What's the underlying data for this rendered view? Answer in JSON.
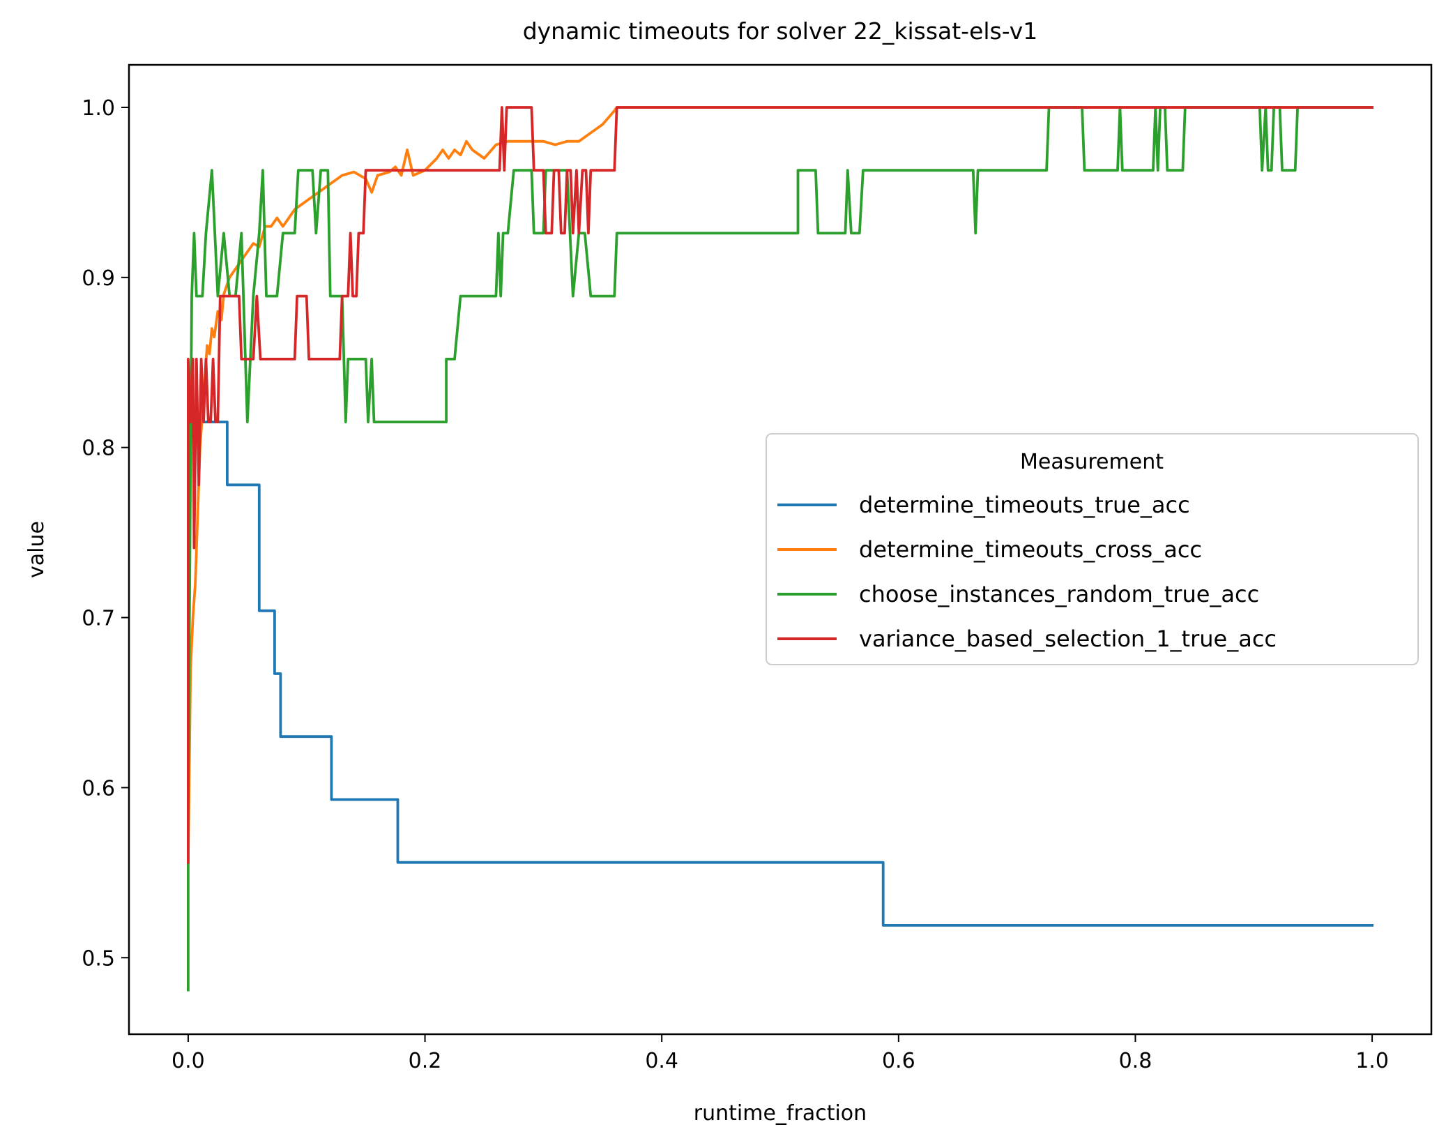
{
  "chart_data": {
    "type": "line",
    "title": "dynamic timeouts for solver 22_kissat-els-v1",
    "xlabel": "runtime_fraction",
    "ylabel": "value",
    "xlim": [
      -0.05,
      1.05
    ],
    "ylim": [
      0.455,
      1.025
    ],
    "xticks": [
      0.0,
      0.2,
      0.4,
      0.6,
      0.8,
      1.0
    ],
    "xtick_labels": [
      "0.0",
      "0.2",
      "0.4",
      "0.6",
      "0.8",
      "1.0"
    ],
    "yticks": [
      0.5,
      0.6,
      0.7,
      0.8,
      0.9,
      1.0
    ],
    "ytick_labels": [
      "0.5",
      "0.6",
      "0.7",
      "0.8",
      "0.9",
      "1.0"
    ],
    "grid": false,
    "legend": {
      "title": "Measurement",
      "position": "center-right"
    },
    "series": [
      {
        "name": "determine_timeouts_true_acc",
        "color": "#1f77b4",
        "style": "step",
        "points": [
          [
            0.0,
            0.556
          ],
          [
            0.0,
            0.815
          ],
          [
            0.033,
            0.815
          ],
          [
            0.033,
            0.778
          ],
          [
            0.06,
            0.778
          ],
          [
            0.06,
            0.704
          ],
          [
            0.073,
            0.704
          ],
          [
            0.073,
            0.667
          ],
          [
            0.078,
            0.667
          ],
          [
            0.078,
            0.63
          ],
          [
            0.121,
            0.63
          ],
          [
            0.121,
            0.593
          ],
          [
            0.177,
            0.593
          ],
          [
            0.177,
            0.556
          ],
          [
            0.587,
            0.556
          ],
          [
            0.587,
            0.519
          ],
          [
            1.0,
            0.519
          ]
        ]
      },
      {
        "name": "determine_timeouts_cross_acc",
        "color": "#ff7f0e",
        "style": "line",
        "points": [
          [
            0.0,
            0.556
          ],
          [
            0.002,
            0.67
          ],
          [
            0.004,
            0.7
          ],
          [
            0.006,
            0.72
          ],
          [
            0.008,
            0.76
          ],
          [
            0.01,
            0.8
          ],
          [
            0.012,
            0.82
          ],
          [
            0.014,
            0.84
          ],
          [
            0.016,
            0.86
          ],
          [
            0.018,
            0.855
          ],
          [
            0.02,
            0.87
          ],
          [
            0.022,
            0.865
          ],
          [
            0.025,
            0.88
          ],
          [
            0.028,
            0.875
          ],
          [
            0.03,
            0.89
          ],
          [
            0.035,
            0.9
          ],
          [
            0.04,
            0.905
          ],
          [
            0.045,
            0.91
          ],
          [
            0.05,
            0.915
          ],
          [
            0.055,
            0.92
          ],
          [
            0.06,
            0.918
          ],
          [
            0.065,
            0.93
          ],
          [
            0.07,
            0.93
          ],
          [
            0.075,
            0.935
          ],
          [
            0.08,
            0.93
          ],
          [
            0.085,
            0.935
          ],
          [
            0.09,
            0.94
          ],
          [
            0.1,
            0.945
          ],
          [
            0.11,
            0.95
          ],
          [
            0.12,
            0.955
          ],
          [
            0.13,
            0.96
          ],
          [
            0.14,
            0.962
          ],
          [
            0.15,
            0.958
          ],
          [
            0.155,
            0.95
          ],
          [
            0.16,
            0.96
          ],
          [
            0.17,
            0.962
          ],
          [
            0.175,
            0.965
          ],
          [
            0.18,
            0.96
          ],
          [
            0.185,
            0.975
          ],
          [
            0.19,
            0.96
          ],
          [
            0.2,
            0.963
          ],
          [
            0.21,
            0.97
          ],
          [
            0.215,
            0.975
          ],
          [
            0.22,
            0.97
          ],
          [
            0.225,
            0.975
          ],
          [
            0.23,
            0.972
          ],
          [
            0.235,
            0.98
          ],
          [
            0.24,
            0.975
          ],
          [
            0.25,
            0.97
          ],
          [
            0.26,
            0.978
          ],
          [
            0.27,
            0.98
          ],
          [
            0.28,
            0.98
          ],
          [
            0.29,
            0.98
          ],
          [
            0.3,
            0.98
          ],
          [
            0.31,
            0.978
          ],
          [
            0.32,
            0.98
          ],
          [
            0.33,
            0.98
          ],
          [
            0.34,
            0.985
          ],
          [
            0.35,
            0.99
          ],
          [
            0.36,
            0.998
          ],
          [
            0.362,
            1.0
          ],
          [
            1.0,
            1.0
          ]
        ]
      },
      {
        "name": "choose_instances_random_true_acc",
        "color": "#2ca02c",
        "style": "line",
        "points": [
          [
            0.0,
            0.481
          ],
          [
            0.0,
            0.593
          ],
          [
            0.003,
            0.889
          ],
          [
            0.005,
            0.926
          ],
          [
            0.007,
            0.889
          ],
          [
            0.012,
            0.889
          ],
          [
            0.015,
            0.926
          ],
          [
            0.02,
            0.963
          ],
          [
            0.025,
            0.889
          ],
          [
            0.03,
            0.926
          ],
          [
            0.035,
            0.889
          ],
          [
            0.04,
            0.889
          ],
          [
            0.045,
            0.926
          ],
          [
            0.05,
            0.815
          ],
          [
            0.055,
            0.889
          ],
          [
            0.06,
            0.926
          ],
          [
            0.063,
            0.963
          ],
          [
            0.066,
            0.889
          ],
          [
            0.075,
            0.889
          ],
          [
            0.08,
            0.926
          ],
          [
            0.09,
            0.926
          ],
          [
            0.093,
            0.963
          ],
          [
            0.105,
            0.963
          ],
          [
            0.108,
            0.926
          ],
          [
            0.112,
            0.963
          ],
          [
            0.118,
            0.963
          ],
          [
            0.12,
            0.889
          ],
          [
            0.13,
            0.889
          ],
          [
            0.133,
            0.815
          ],
          [
            0.135,
            0.852
          ],
          [
            0.15,
            0.852
          ],
          [
            0.152,
            0.815
          ],
          [
            0.155,
            0.852
          ],
          [
            0.157,
            0.815
          ],
          [
            0.218,
            0.815
          ],
          [
            0.218,
            0.852
          ],
          [
            0.225,
            0.852
          ],
          [
            0.23,
            0.889
          ],
          [
            0.26,
            0.889
          ],
          [
            0.262,
            0.926
          ],
          [
            0.264,
            0.889
          ],
          [
            0.266,
            0.926
          ],
          [
            0.27,
            0.926
          ],
          [
            0.275,
            0.963
          ],
          [
            0.29,
            0.963
          ],
          [
            0.292,
            0.926
          ],
          [
            0.3,
            0.926
          ],
          [
            0.302,
            0.963
          ],
          [
            0.32,
            0.963
          ],
          [
            0.325,
            0.889
          ],
          [
            0.33,
            0.926
          ],
          [
            0.335,
            0.926
          ],
          [
            0.34,
            0.889
          ],
          [
            0.36,
            0.889
          ],
          [
            0.362,
            0.926
          ],
          [
            0.515,
            0.926
          ],
          [
            0.515,
            0.963
          ],
          [
            0.53,
            0.963
          ],
          [
            0.532,
            0.926
          ],
          [
            0.555,
            0.926
          ],
          [
            0.557,
            0.963
          ],
          [
            0.56,
            0.926
          ],
          [
            0.567,
            0.926
          ],
          [
            0.57,
            0.963
          ],
          [
            0.663,
            0.963
          ],
          [
            0.665,
            0.926
          ],
          [
            0.667,
            0.963
          ],
          [
            0.725,
            0.963
          ],
          [
            0.727,
            1.0
          ],
          [
            0.755,
            1.0
          ],
          [
            0.757,
            0.963
          ],
          [
            0.785,
            0.963
          ],
          [
            0.787,
            1.0
          ],
          [
            0.789,
            0.963
          ],
          [
            0.815,
            0.963
          ],
          [
            0.817,
            1.0
          ],
          [
            0.819,
            0.963
          ],
          [
            0.821,
            1.0
          ],
          [
            0.825,
            1.0
          ],
          [
            0.827,
            0.963
          ],
          [
            0.84,
            0.963
          ],
          [
            0.842,
            1.0
          ],
          [
            0.905,
            1.0
          ],
          [
            0.907,
            0.963
          ],
          [
            0.91,
            1.0
          ],
          [
            0.912,
            0.963
          ],
          [
            0.915,
            0.963
          ],
          [
            0.917,
            1.0
          ],
          [
            0.922,
            1.0
          ],
          [
            0.924,
            0.963
          ],
          [
            0.935,
            0.963
          ],
          [
            0.937,
            1.0
          ],
          [
            1.0,
            1.0
          ]
        ]
      },
      {
        "name": "variance_based_selection_1_true_acc",
        "color": "#d62728",
        "style": "line",
        "points": [
          [
            0.0,
            0.556
          ],
          [
            0.0,
            0.852
          ],
          [
            0.002,
            0.815
          ],
          [
            0.004,
            0.852
          ],
          [
            0.005,
            0.741
          ],
          [
            0.007,
            0.852
          ],
          [
            0.009,
            0.778
          ],
          [
            0.011,
            0.852
          ],
          [
            0.013,
            0.815
          ],
          [
            0.015,
            0.852
          ],
          [
            0.017,
            0.815
          ],
          [
            0.019,
            0.815
          ],
          [
            0.021,
            0.852
          ],
          [
            0.023,
            0.815
          ],
          [
            0.025,
            0.815
          ],
          [
            0.027,
            0.889
          ],
          [
            0.043,
            0.889
          ],
          [
            0.045,
            0.852
          ],
          [
            0.055,
            0.852
          ],
          [
            0.058,
            0.889
          ],
          [
            0.061,
            0.852
          ],
          [
            0.09,
            0.852
          ],
          [
            0.092,
            0.889
          ],
          [
            0.1,
            0.889
          ],
          [
            0.102,
            0.852
          ],
          [
            0.128,
            0.852
          ],
          [
            0.13,
            0.889
          ],
          [
            0.135,
            0.889
          ],
          [
            0.137,
            0.926
          ],
          [
            0.139,
            0.889
          ],
          [
            0.142,
            0.889
          ],
          [
            0.144,
            0.926
          ],
          [
            0.148,
            0.926
          ],
          [
            0.15,
            0.963
          ],
          [
            0.263,
            0.963
          ],
          [
            0.265,
            1.0
          ],
          [
            0.267,
            0.963
          ],
          [
            0.269,
            1.0
          ],
          [
            0.29,
            1.0
          ],
          [
            0.292,
            0.963
          ],
          [
            0.3,
            0.963
          ],
          [
            0.302,
            0.926
          ],
          [
            0.307,
            0.926
          ],
          [
            0.309,
            0.963
          ],
          [
            0.313,
            0.963
          ],
          [
            0.315,
            0.926
          ],
          [
            0.318,
            0.926
          ],
          [
            0.32,
            0.963
          ],
          [
            0.323,
            0.963
          ],
          [
            0.325,
            0.926
          ],
          [
            0.328,
            0.963
          ],
          [
            0.33,
            0.926
          ],
          [
            0.333,
            0.963
          ],
          [
            0.336,
            0.963
          ],
          [
            0.338,
            0.926
          ],
          [
            0.34,
            0.963
          ],
          [
            0.36,
            0.963
          ],
          [
            0.362,
            1.0
          ],
          [
            1.0,
            1.0
          ]
        ]
      }
    ]
  }
}
